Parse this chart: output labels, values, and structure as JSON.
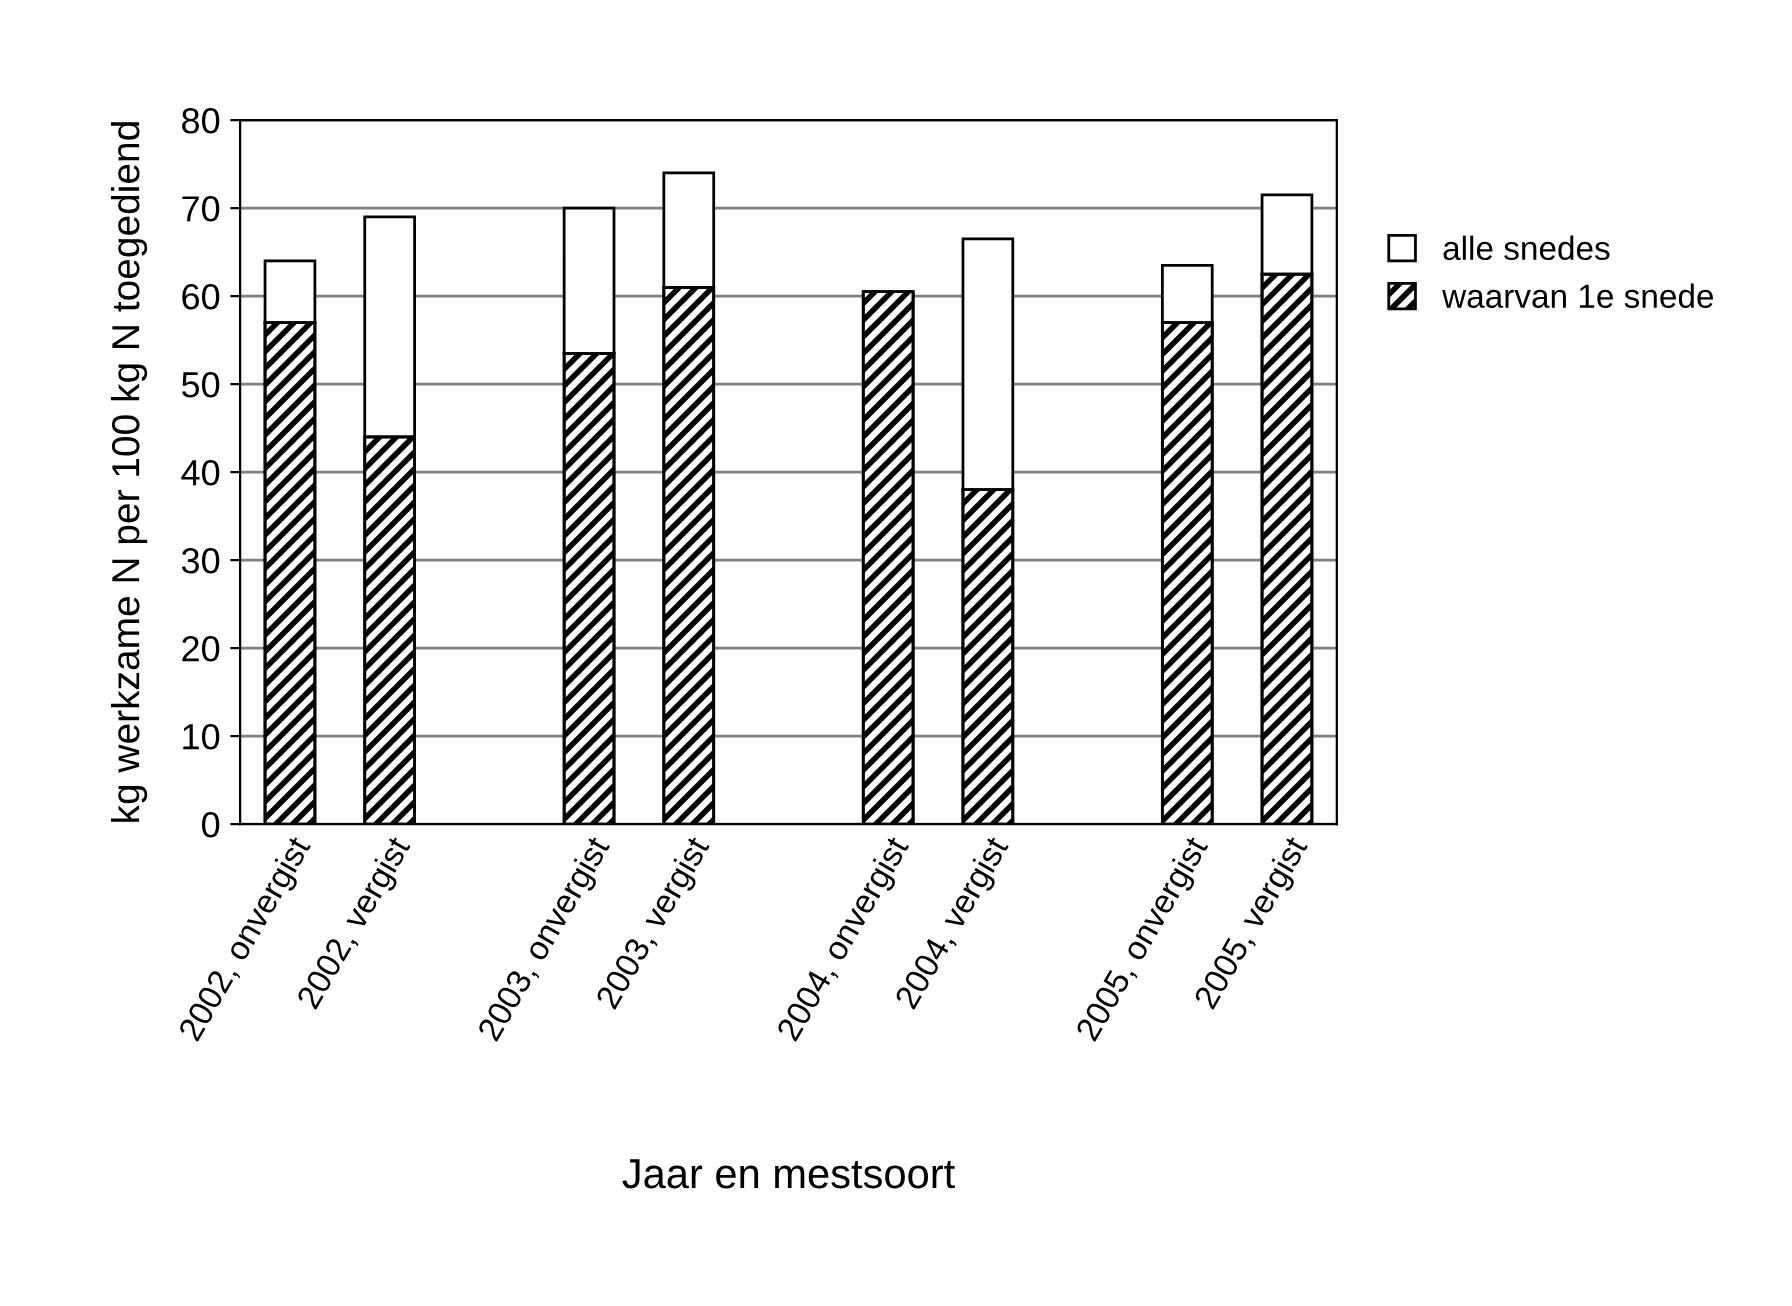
{
  "chart_data": {
    "type": "bar",
    "stacked": true,
    "xlabel": "Jaar en mestsoort",
    "ylabel": "kg werkzame N per 100 kg N toegediend",
    "categories": [
      "2002, onvergist",
      "2002, vergist",
      null,
      "2003, onvergist",
      "2003, vergist",
      null,
      "2004, onvergist",
      "2004, vergist",
      null,
      "2005, onvergist",
      "2005, vergist"
    ],
    "series": [
      {
        "name": "waarvan 1e snede",
        "color": "#000000",
        "values": [
          57,
          44,
          null,
          53.5,
          61,
          null,
          60.5,
          38,
          null,
          57,
          62.5
        ]
      },
      {
        "name": "alle snedes",
        "color": "#ffffff",
        "values": [
          7,
          25,
          null,
          16.5,
          13,
          null,
          0,
          28.5,
          null,
          6.5,
          9
        ]
      }
    ],
    "ylim": [
      0,
      80
    ],
    "yticks": [
      0,
      10,
      20,
      30,
      40,
      50,
      60,
      70,
      80
    ],
    "grid": "y",
    "legend": "right"
  }
}
